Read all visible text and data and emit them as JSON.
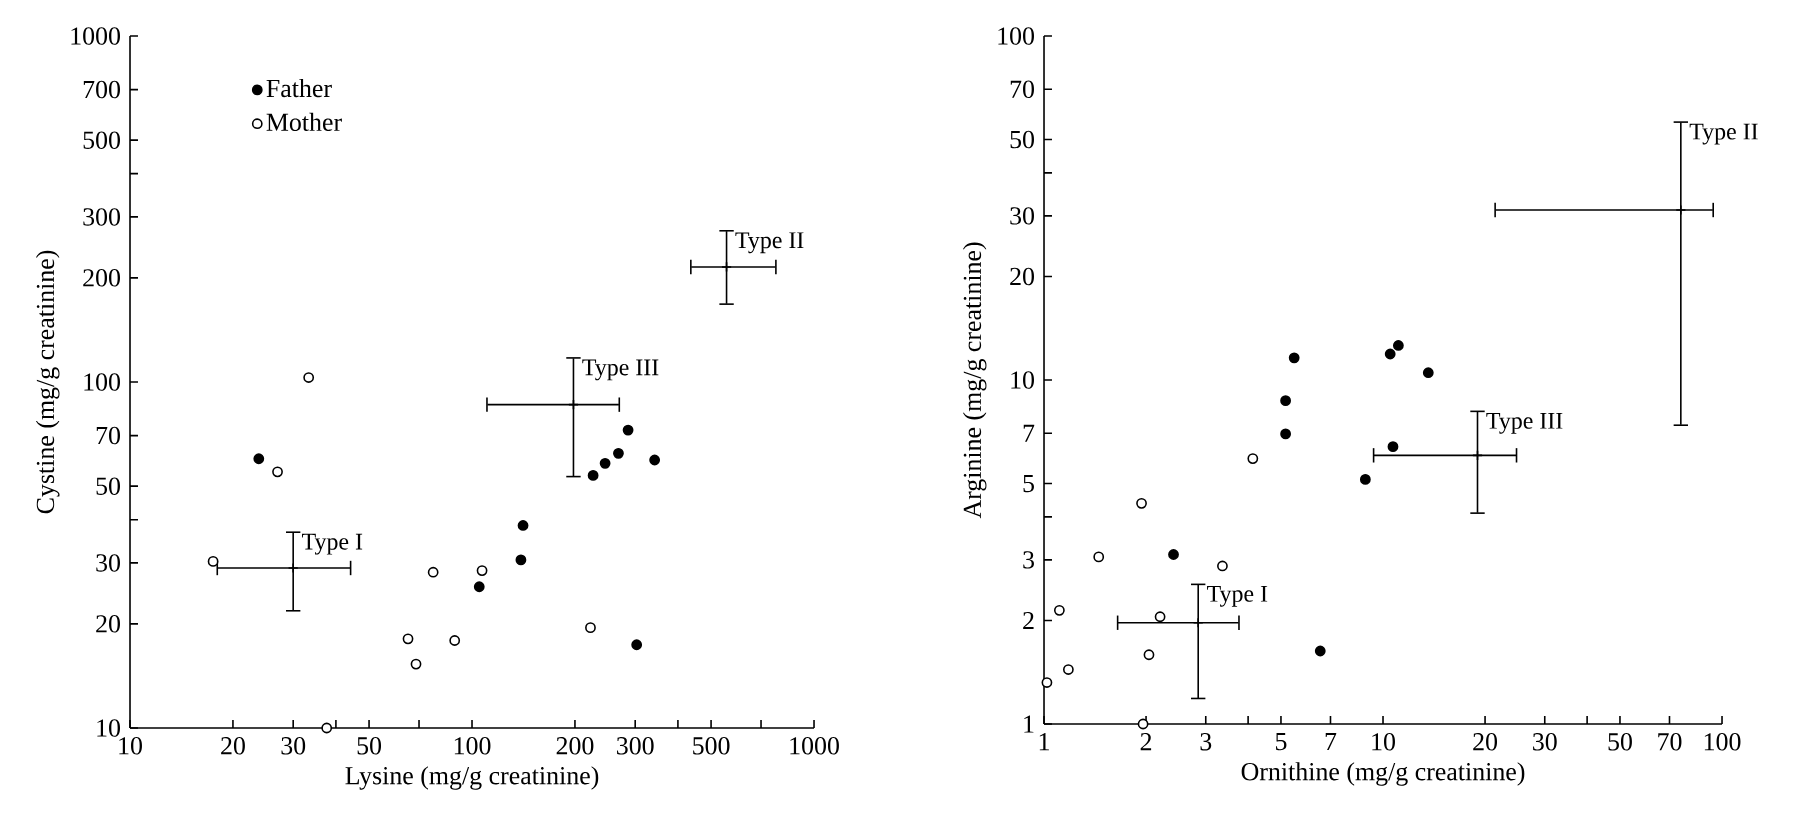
{
  "chart_data": [
    {
      "type": "scatter",
      "xlabel": "Lysine (mg/g creatinine)",
      "ylabel": "Cystine (mg/g creatinine)",
      "log": "xy",
      "marker": "circle",
      "legend": "top left",
      "xlim": [
        10,
        1000
      ],
      "ylim": [
        10,
        1000
      ],
      "xticks": [
        10,
        20,
        30,
        {
          "value": 40,
          "label": null
        },
        50,
        {
          "value": 70,
          "label": null
        },
        100,
        200,
        300,
        {
          "value": 400,
          "label": null
        },
        500,
        {
          "value": 700,
          "label": null
        },
        1000
      ],
      "yticks": [
        10,
        20,
        30,
        {
          "value": 40,
          "label": null
        },
        50,
        70,
        100,
        200,
        300,
        {
          "value": 400,
          "label": null
        },
        500,
        700,
        1000
      ],
      "series": [
        {
          "name": "Father",
          "color": "#000000",
          "x": [
            23.8,
            105,
            139,
            141,
            226,
            245,
            268,
            286,
            342,
            303
          ],
          "values": [
            60,
            25.6,
            30.6,
            38.5,
            53.7,
            58.2,
            62.2,
            72.6,
            59.5,
            17.4
          ]
        },
        {
          "name": "Mother",
          "color": "#ffffff",
          "x": [
            17.5,
            27,
            33.3,
            37.6,
            65,
            68.6,
            77,
            89,
            107,
            222
          ],
          "values": [
            30.3,
            55,
            103,
            10,
            18.1,
            15.3,
            28.2,
            17.9,
            28.5,
            19.5
          ]
        },
        {
          "name": "Type I",
          "type": "scatter",
          "marker": "cross",
          "color": "#000000",
          "x": [
            30
          ],
          "values": [
            29
          ],
          "xerrors": [
            [
              17.9,
              44.4
            ]
          ],
          "errors": [
            [
              21.7,
              37
            ]
          ]
        },
        {
          "name": "Type III",
          "type": "scatter",
          "marker": "cross",
          "color": "#000000",
          "x": [
            198
          ],
          "values": [
            86
          ],
          "xerrors": [
            [
              110,
              271
            ]
          ],
          "errors": [
            [
              53,
              118
            ]
          ]
        },
        {
          "name": "Type II",
          "type": "scatter",
          "marker": "cross",
          "color": "#000000",
          "x": [
            555
          ],
          "values": [
            215
          ],
          "xerrors": [
            [
              434,
              778
            ]
          ],
          "errors": [
            [
              167,
              275
            ]
          ]
        }
      ]
    },
    {
      "type": "scatter",
      "xlabel": "Ornithine (mg/g creatinine)",
      "ylabel": "Arginine (mg/g creatinine)",
      "log": "xy",
      "marker": "circle",
      "xlim": [
        1,
        100
      ],
      "ylim": [
        1,
        100
      ],
      "xticks": [
        1,
        2,
        3,
        {
          "value": 4,
          "label": null
        },
        5,
        7,
        10,
        20,
        30,
        {
          "value": 40,
          "label": null
        },
        50,
        70,
        100
      ],
      "yticks": [
        1,
        2,
        3,
        {
          "value": 4,
          "label": null
        },
        5,
        7,
        10,
        20,
        30,
        {
          "value": 40,
          "label": null
        },
        50,
        70,
        100
      ],
      "series": [
        {
          "color": "#000000",
          "x": [
            2.41,
            5.16,
            5.16,
            5.47,
            6.53,
            8.87,
            10.7,
            10.5,
            11.1,
            13.6
          ],
          "values": [
            3.11,
            6.97,
            8.71,
            11.6,
            1.63,
            5.14,
            6.4,
            11.9,
            12.6,
            10.5
          ]
        },
        {
          "color": "#ffffff",
          "x": [
            1.02,
            1.11,
            1.18,
            1.45,
            1.94,
            2.04,
            2.2,
            1.96,
            3.36,
            4.13
          ],
          "values": [
            1.32,
            2.14,
            1.44,
            3.06,
            4.38,
            1.59,
            2.05,
            1,
            2.88,
            5.91
          ]
        },
        {
          "name": "Type I",
          "type": "scatter",
          "marker": "cross",
          "color": "#000000",
          "x": [
            2.85
          ],
          "values": [
            1.97
          ],
          "xerrors": [
            [
              1.64,
              3.78
            ]
          ],
          "errors": [
            [
              1.18,
              2.56
            ]
          ]
        },
        {
          "name": "Type III",
          "type": "scatter",
          "marker": "cross",
          "color": "#000000",
          "x": [
            19
          ],
          "values": [
            6.04
          ],
          "xerrors": [
            [
              9.33,
              24.9
            ]
          ],
          "errors": [
            [
              4.08,
              8.15
            ]
          ]
        },
        {
          "name": "Type II",
          "type": "scatter",
          "marker": "cross",
          "color": "#000000",
          "x": [
            75.6
          ],
          "values": [
            31.2
          ],
          "xerrors": [
            [
              21.3,
              94.7
            ]
          ],
          "errors": [
            [
              7.35,
              56.5
            ]
          ]
        }
      ]
    }
  ]
}
